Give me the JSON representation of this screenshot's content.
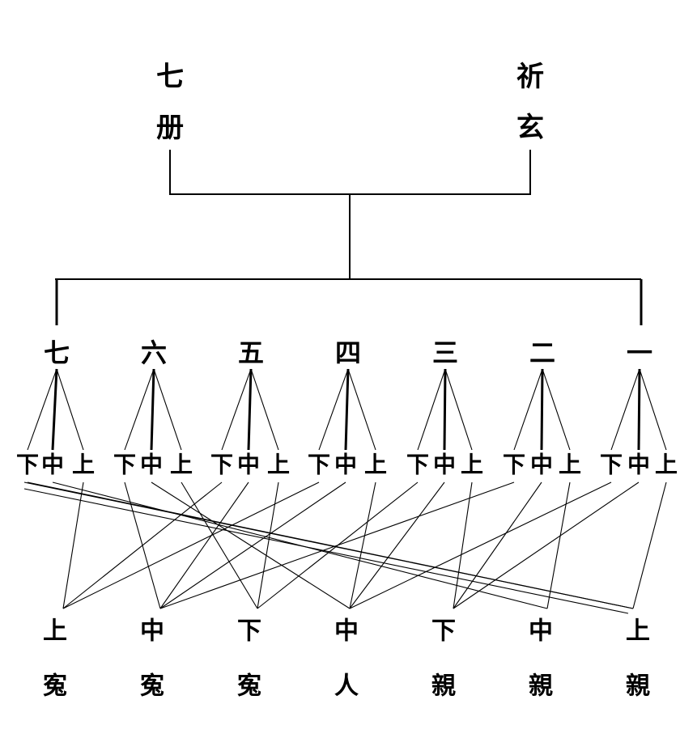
{
  "top": {
    "left": {
      "line1": "七",
      "line2": "册"
    },
    "right": {
      "line1": "祈",
      "line2": "玄"
    }
  },
  "numbers": [
    "七",
    "六",
    "五",
    "四",
    "三",
    "二",
    "一"
  ],
  "sub_labels": [
    "下",
    "中",
    "上"
  ],
  "bottom": [
    {
      "line1": "上",
      "line2": "寃"
    },
    {
      "line1": "中",
      "line2": "寃"
    },
    {
      "line1": "下",
      "line2": "寃"
    },
    {
      "line1": "中",
      "line2": "人"
    },
    {
      "line1": "下",
      "line2": "親"
    },
    {
      "line1": "中",
      "line2": "親"
    },
    {
      "line1": "上",
      "line2": "親"
    }
  ]
}
